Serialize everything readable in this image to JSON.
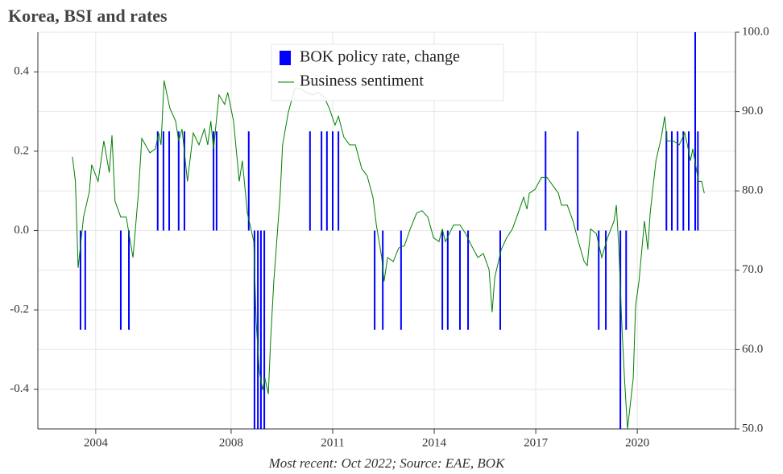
{
  "chart_data": {
    "type": "bar-line",
    "title": "Korea, BSI and rates",
    "footnote": "Most recent: Oct 2022; Source: EAE, BOK",
    "xlim": [
      2002.29,
      2022.9
    ],
    "xticks": [
      2004,
      2008,
      2011,
      2014,
      2017,
      2020
    ],
    "ylim": [
      -0.5,
      0.5
    ],
    "yticks": [
      -0.4,
      -0.2,
      {
        "value": 0,
        "label": "0.0"
      },
      0.2,
      0.4
    ],
    "y2lim": [
      50,
      100
    ],
    "y2ticks": [
      {
        "value": 50,
        "label": "50.0"
      },
      {
        "value": 60,
        "label": "60.0"
      },
      {
        "value": 70,
        "label": "70.0"
      },
      {
        "value": 80,
        "label": "80.0"
      },
      {
        "value": 90,
        "label": "90.0"
      },
      {
        "value": 100,
        "label": "100.0"
      }
    ],
    "grid": true,
    "legend": "top",
    "series": [
      {
        "name": "BOK policy rate, change",
        "color": "#0000ff",
        "type": "bar",
        "x": [
          2003.55,
          2003.69,
          2004.74,
          2004.98,
          2005.83,
          2006.0,
          2006.17,
          2006.45,
          2006.62,
          2007.48,
          2007.57,
          2008.52,
          2008.69,
          2008.79,
          2008.88,
          2008.98,
          2010.33,
          2010.67,
          2010.83,
          2011.0,
          2011.17,
          2012.24,
          2012.48,
          2013.02,
          2014.24,
          2014.4,
          2014.76,
          2015.0,
          2015.95,
          2017.29,
          2018.24,
          2018.86,
          2019.07,
          2019.5,
          2019.67,
          2020.86,
          2021.02,
          2021.19,
          2021.36,
          2021.52,
          2021.71,
          2021.79
        ],
        "values": [
          -0.25,
          -0.25,
          -0.25,
          -0.25,
          0.25,
          0.25,
          0.25,
          0.25,
          0.25,
          0.25,
          0.25,
          0.25,
          -0.5,
          -0.5,
          -0.5,
          -0.5,
          0.25,
          0.25,
          0.25,
          0.25,
          0.25,
          -0.25,
          -0.25,
          -0.25,
          -0.25,
          -0.25,
          -0.25,
          -0.25,
          -0.25,
          0.25,
          0.25,
          -0.25,
          -0.25,
          -0.5,
          -0.25,
          0.25,
          0.25,
          0.25,
          0.25,
          0.25,
          0.5,
          0.25
        ]
      },
      {
        "name": "Business sentiment",
        "color": "#008000",
        "type": "line",
        "axis": "y2",
        "x": [
          2003.31,
          2003.4,
          2003.48,
          2003.64,
          2003.81,
          2003.88,
          2004.07,
          2004.24,
          2004.4,
          2004.48,
          2004.57,
          2004.74,
          2004.9,
          2005.1,
          2005.26,
          2005.36,
          2005.6,
          2005.76,
          2005.86,
          2005.93,
          2006.02,
          2006.19,
          2006.36,
          2006.45,
          2006.55,
          2006.71,
          2006.88,
          2007.05,
          2007.21,
          2007.31,
          2007.4,
          2007.48,
          2007.64,
          2007.81,
          2007.9,
          2008.07,
          2008.24,
          2008.33,
          2008.48,
          2008.67,
          2008.74,
          2008.83,
          2008.93,
          2009.0,
          2009.1,
          2009.17,
          2009.26,
          2009.45,
          2009.52,
          2009.69,
          2009.88,
          2010.05,
          2010.21,
          2010.4,
          2010.57,
          2010.74,
          2010.9,
          2011.07,
          2011.17,
          2011.33,
          2011.5,
          2011.67,
          2011.86,
          2012.02,
          2012.19,
          2012.29,
          2012.45,
          2012.52,
          2012.62,
          2012.79,
          2012.95,
          2013.12,
          2013.29,
          2013.48,
          2013.64,
          2013.81,
          2013.98,
          2014.14,
          2014.24,
          2014.33,
          2014.57,
          2014.76,
          2014.93,
          2015.1,
          2015.29,
          2015.45,
          2015.62,
          2015.71,
          2015.79,
          2015.98,
          2016.14,
          2016.31,
          2016.48,
          2016.64,
          2016.74,
          2016.81,
          2016.98,
          2017.17,
          2017.33,
          2017.5,
          2017.67,
          2017.76,
          2017.93,
          2018.1,
          2018.26,
          2018.43,
          2018.52,
          2018.62,
          2018.79,
          2018.95,
          2019.12,
          2019.31,
          2019.38,
          2019.45,
          2019.55,
          2019.62,
          2019.71,
          2019.88,
          2019.95,
          2020.05,
          2020.21,
          2020.31,
          2020.38,
          2020.55,
          2020.71,
          2020.81,
          2020.88,
          2021.07,
          2021.24,
          2021.4,
          2021.48,
          2021.57,
          2021.64,
          2021.74,
          2021.81,
          2021.9,
          2021.98
        ],
        "values": [
          84.3,
          81.2,
          70.3,
          76.7,
          79.9,
          83.3,
          81.2,
          86.3,
          82.3,
          87.0,
          78.7,
          76.7,
          76.7,
          71.6,
          79.7,
          86.6,
          84.8,
          85.3,
          87.3,
          85.8,
          93.9,
          90.4,
          88.8,
          86.3,
          87.8,
          81.2,
          87.3,
          85.8,
          87.8,
          85.8,
          88.8,
          85.3,
          92.1,
          90.9,
          92.4,
          88.8,
          81.2,
          83.8,
          77.2,
          73.6,
          63.5,
          57.4,
          54.9,
          56.4,
          54.4,
          61.5,
          68.6,
          79.7,
          85.8,
          89.9,
          92.9,
          92.9,
          92.4,
          92.1,
          92.4,
          91.9,
          90.4,
          88.3,
          89.4,
          86.8,
          85.8,
          85.8,
          82.8,
          81.9,
          79.2,
          75.7,
          71.6,
          68.6,
          71.6,
          71.1,
          72.8,
          73.1,
          75.2,
          77.2,
          77.5,
          76.7,
          74.1,
          73.6,
          75.2,
          73.6,
          75.7,
          75.7,
          74.6,
          73.1,
          71.6,
          72.1,
          70.1,
          64.7,
          69.1,
          72.6,
          74.1,
          75.2,
          77.2,
          79.2,
          77.7,
          79.7,
          80.2,
          81.7,
          81.7,
          80.7,
          79.7,
          78.2,
          78.2,
          76.2,
          73.6,
          71.1,
          70.6,
          75.2,
          74.6,
          71.6,
          74.1,
          76.2,
          78.2,
          73.2,
          62.5,
          56.4,
          50.0,
          56.4,
          65.5,
          68.6,
          76.2,
          72.6,
          77.2,
          83.8,
          86.8,
          89.4,
          86.3,
          86.3,
          85.8,
          87.3,
          85.8,
          83.8,
          85.3,
          82.8,
          81.2,
          81.2,
          79.7
        ]
      }
    ]
  }
}
